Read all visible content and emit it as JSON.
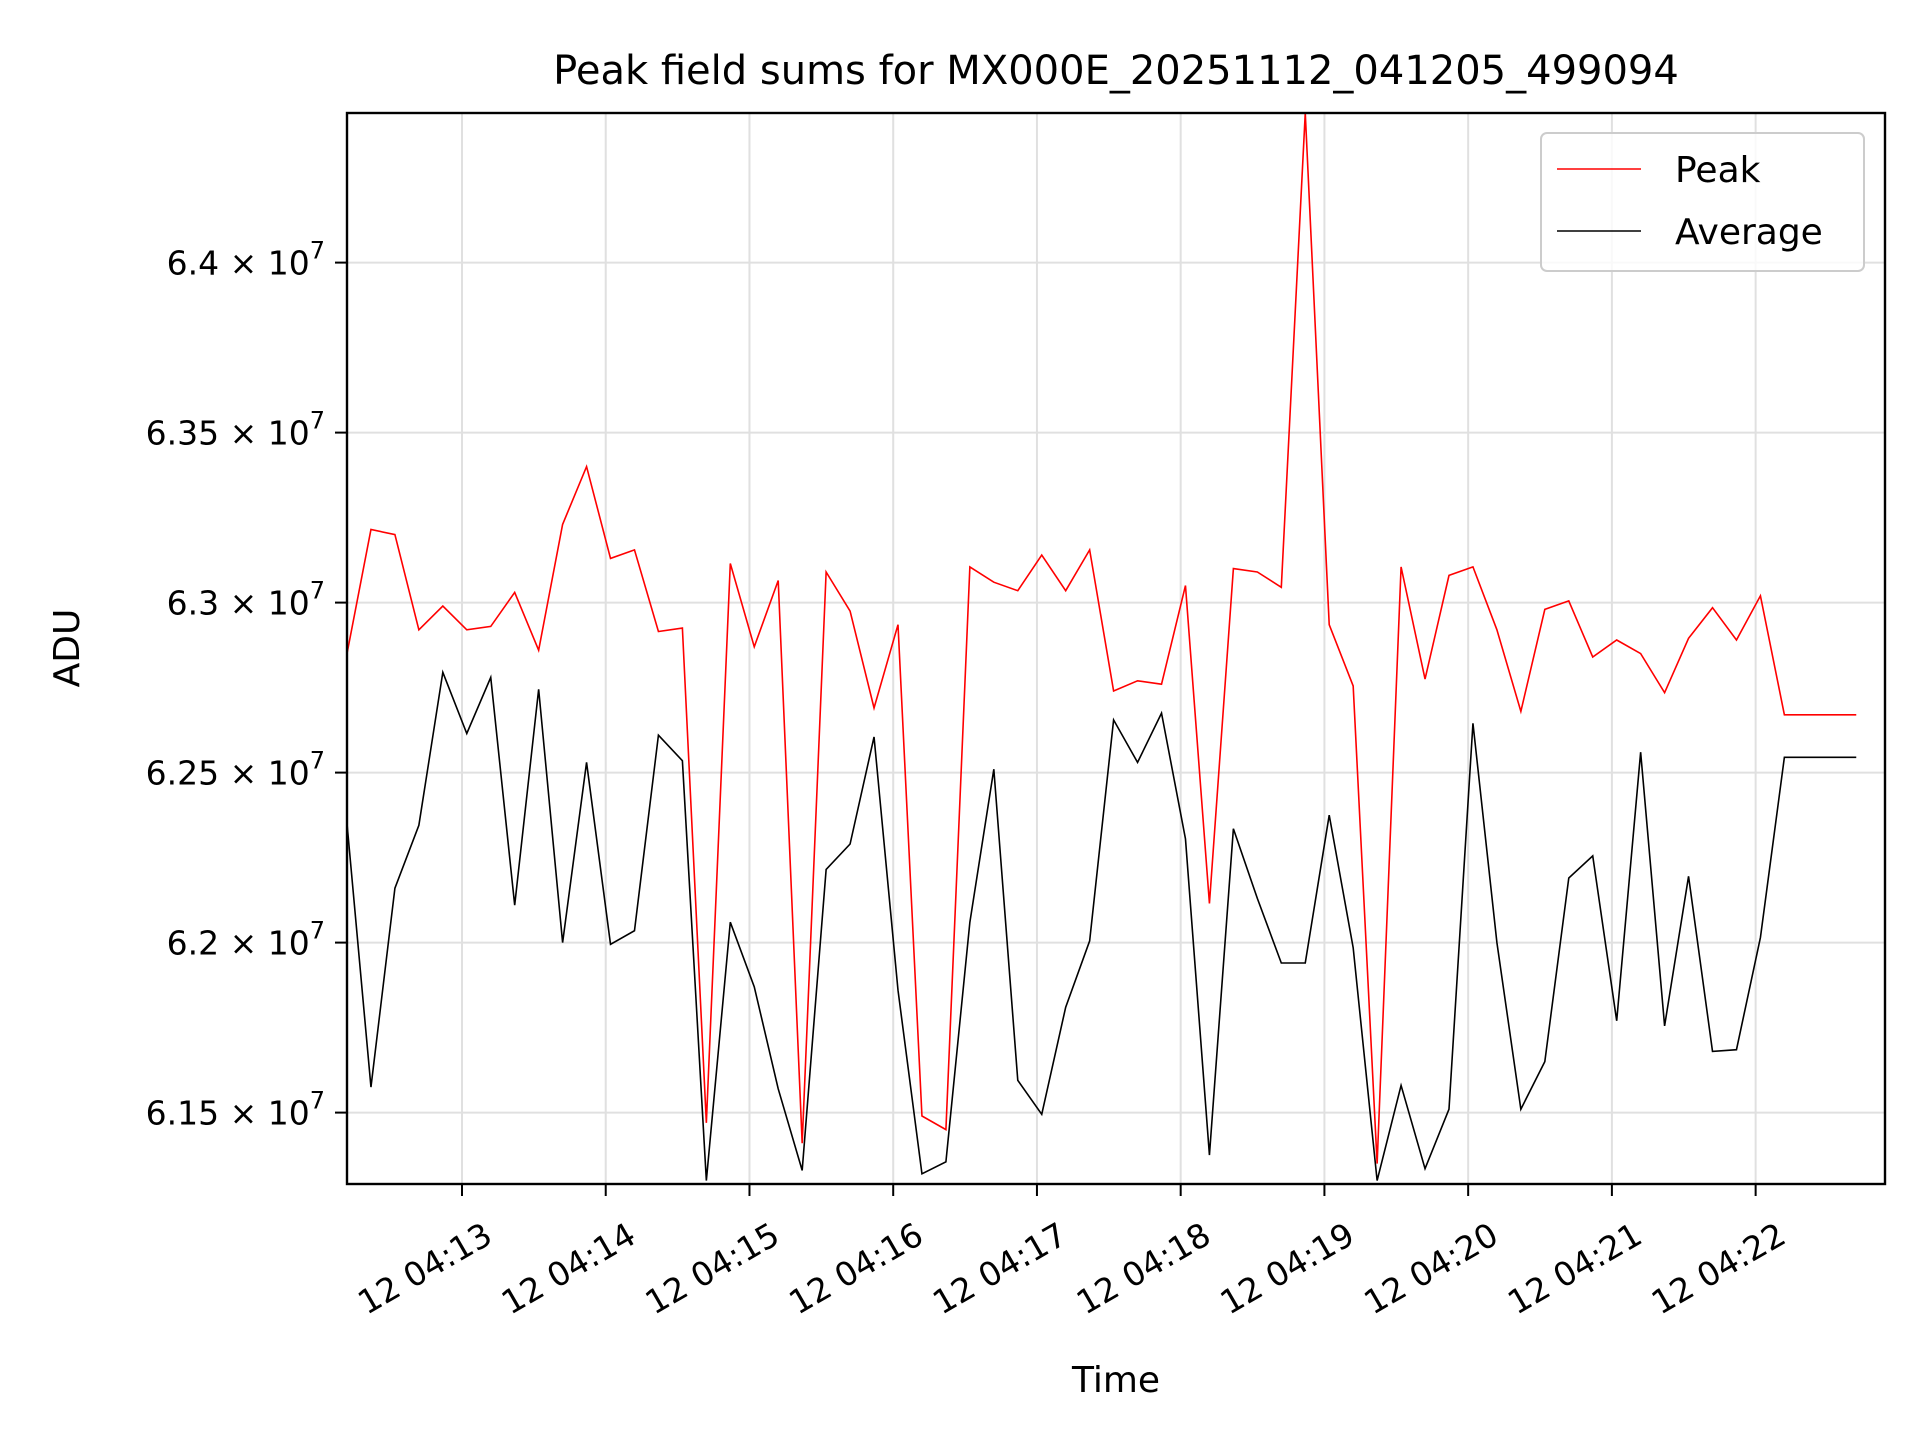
{
  "chart_data": {
    "type": "line",
    "title": "Peak field sums for MX000E_20251112_041205_499094",
    "xlabel": "Time",
    "ylabel": "ADU",
    "x_start": "2025-11-12 04:12:12",
    "x_step_seconds": 10,
    "xlim": [
      "2025-11-12 04:12:12",
      "2025-11-12 04:22:54"
    ],
    "ylim": [
      61290000,
      64440000
    ],
    "grid": true,
    "legend": "top-right",
    "x_ticks": [
      {
        "value": "2025-11-12 04:13",
        "label": "12 04:13"
      },
      {
        "value": "2025-11-12 04:14",
        "label": "12 04:14"
      },
      {
        "value": "2025-11-12 04:15",
        "label": "12 04:15"
      },
      {
        "value": "2025-11-12 04:16",
        "label": "12 04:16"
      },
      {
        "value": "2025-11-12 04:17",
        "label": "12 04:17"
      },
      {
        "value": "2025-11-12 04:18",
        "label": "12 04:18"
      },
      {
        "value": "2025-11-12 04:19",
        "label": "12 04:19"
      },
      {
        "value": "2025-11-12 04:20",
        "label": "12 04:20"
      },
      {
        "value": "2025-11-12 04:21",
        "label": "12 04:21"
      },
      {
        "value": "2025-11-12 04:22",
        "label": "12 04:22"
      }
    ],
    "y_ticks": [
      {
        "value": 61500000,
        "mant": "6.15"
      },
      {
        "value": 62000000,
        "mant": "6.2"
      },
      {
        "value": 62500000,
        "mant": "6.25"
      },
      {
        "value": 63000000,
        "mant": "6.3"
      },
      {
        "value": 63500000,
        "mant": "6.35"
      },
      {
        "value": 64000000,
        "mant": "6.4"
      }
    ],
    "y_tick_suffix": "× 10",
    "y_tick_exponent": "7",
    "series": [
      {
        "name": "Peak",
        "color": "#ff0000",
        "values": [
          62850000,
          63215000,
          63200000,
          62920000,
          62990000,
          62920000,
          62930000,
          63030000,
          62860000,
          63230000,
          63400000,
          63130000,
          63155000,
          62915000,
          62925000,
          61470000,
          63115000,
          62870000,
          63065000,
          61410000,
          63090000,
          62975000,
          62690000,
          62935000,
          61490000,
          61450000,
          63105000,
          63060000,
          63035000,
          63140000,
          63035000,
          63155000,
          62740000,
          62770000,
          62760000,
          63050000,
          62115000,
          63100000,
          63090000,
          63045000,
          64440000,
          62935000,
          62755000,
          61350000,
          63105000,
          62775000,
          63080000,
          63105000,
          62920000,
          62680000,
          62980000,
          63005000,
          62840000,
          62890000,
          62850000,
          62735000,
          62895000,
          62985000,
          62890000,
          63020000,
          62670000,
          62670000,
          62670000,
          62670000
        ]
      },
      {
        "name": "Average",
        "color": "#000000",
        "values": [
          62350000,
          61575000,
          62160000,
          62345000,
          62795000,
          62615000,
          62780000,
          62110000,
          62745000,
          62000000,
          62530000,
          61995000,
          62035000,
          62610000,
          62535000,
          61300000,
          62060000,
          61870000,
          61570000,
          61330000,
          62215000,
          62290000,
          62605000,
          61860000,
          61320000,
          61355000,
          62060000,
          62510000,
          61595000,
          61495000,
          61810000,
          62005000,
          62655000,
          62530000,
          62675000,
          62305000,
          61375000,
          62335000,
          62130000,
          61940000,
          61940000,
          62375000,
          61985000,
          61300000,
          61580000,
          61335000,
          61510000,
          62645000,
          62000000,
          61510000,
          61650000,
          62190000,
          62255000,
          61770000,
          62560000,
          61755000,
          62195000,
          61680000,
          61685000,
          62015000,
          62545000,
          62545000,
          62545000,
          62545000
        ]
      }
    ]
  }
}
